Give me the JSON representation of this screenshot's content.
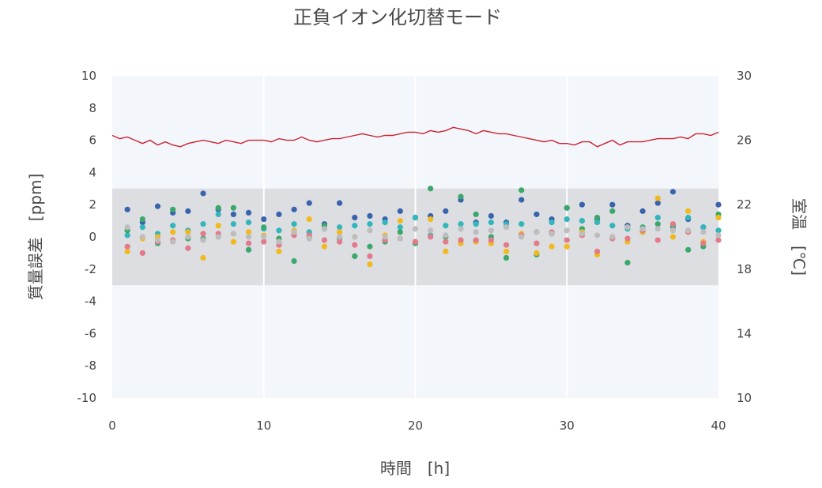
{
  "chart_data": {
    "type": "scatter",
    "title": "正負イオン化切替モード",
    "xlabel": "時間　[h]",
    "ylabel": "質量誤差　[ppm]",
    "y2label": "室温　[℃]",
    "xlim": [
      0,
      40
    ],
    "ylim": [
      -10,
      10
    ],
    "y2lim": [
      10,
      30
    ],
    "x_ticks": [
      "0",
      "10",
      "20",
      "30",
      "40"
    ],
    "y_ticks": [
      "10",
      "8",
      "6",
      "4",
      "2",
      "0",
      "-2",
      "-4",
      "-6",
      "-8",
      "-10"
    ],
    "y2_ticks": [
      "30",
      "26",
      "22",
      "18",
      "14",
      "10"
    ],
    "tolerance_band": [
      -3,
      3
    ],
    "colors": {
      "blue": "#3a63ad",
      "teal": "#33b5bc",
      "green": "#3aa86b",
      "yellow": "#f2b91e",
      "pink": "#e27a8a",
      "gray": "#bdbdbd",
      "temperature": "#cc2233"
    },
    "series": [
      {
        "color_key": "blue",
        "x": [
          1,
          2,
          3,
          4,
          5,
          6,
          7,
          8,
          9,
          10,
          11,
          12,
          13,
          14,
          15,
          16,
          17,
          18,
          19,
          20,
          21,
          22,
          23,
          24,
          25,
          26,
          27,
          28,
          29,
          30,
          31,
          32,
          33,
          34,
          35,
          36,
          37,
          38,
          39,
          40
        ],
        "y": [
          1.7,
          0.9,
          1.9,
          1.5,
          1.6,
          2.7,
          1.7,
          1.4,
          1.5,
          1.1,
          1.4,
          1.7,
          2.1,
          0.8,
          2.1,
          1.2,
          1.3,
          1.1,
          1.6,
          1.2,
          1.3,
          1.6,
          2.3,
          0.9,
          1.3,
          0.9,
          2.3,
          1.4,
          1.1,
          1.8,
          2.0,
          1.1,
          2.0,
          0.7,
          1.6,
          2.1,
          2.8,
          1.1,
          0.6,
          2.0
        ]
      },
      {
        "color_key": "teal",
        "x": [
          1,
          2,
          3,
          4,
          5,
          6,
          7,
          8,
          9,
          10,
          11,
          12,
          13,
          14,
          15,
          16,
          17,
          18,
          19,
          20,
          21,
          22,
          23,
          24,
          25,
          26,
          27,
          28,
          29,
          30,
          31,
          32,
          33,
          34,
          35,
          36,
          37,
          38,
          39,
          40
        ],
        "y": [
          0.1,
          0.6,
          0.2,
          0.7,
          0.4,
          0.8,
          1.4,
          0.8,
          0.9,
          0.5,
          0.4,
          0.8,
          0.3,
          0.5,
          0.6,
          0.7,
          0.8,
          0.9,
          0.6,
          1.2,
          0.1,
          0.7,
          0.8,
          0.8,
          0.9,
          0.8,
          0.8,
          0.3,
          0.9,
          1.1,
          1.0,
          0.9,
          0.7,
          0.5,
          0.3,
          1.2,
          0.6,
          1.2,
          0.6,
          0.4
        ]
      },
      {
        "color_key": "green",
        "x": [
          1,
          2,
          3,
          4,
          5,
          6,
          7,
          8,
          9,
          10,
          11,
          12,
          13,
          14,
          15,
          16,
          17,
          18,
          19,
          20,
          21,
          22,
          23,
          24,
          25,
          26,
          27,
          28,
          29,
          30,
          31,
          32,
          33,
          34,
          35,
          36,
          37,
          38,
          39,
          40
        ],
        "y": [
          0.4,
          1.1,
          -0.4,
          1.7,
          -0.1,
          -0.1,
          1.8,
          1.8,
          -0.8,
          0.6,
          -0.1,
          -1.5,
          0.0,
          0.7,
          -0.1,
          -1.2,
          -0.6,
          -0.3,
          0.3,
          -0.4,
          3.0,
          0.0,
          2.5,
          1.4,
          0.0,
          -1.3,
          2.9,
          -1.1,
          0.2,
          1.8,
          0.5,
          1.2,
          1.6,
          -1.6,
          0.6,
          0.8,
          0.7,
          -0.8,
          -0.6,
          1.4
        ]
      },
      {
        "color_key": "yellow",
        "x": [
          1,
          2,
          3,
          4,
          5,
          6,
          7,
          8,
          9,
          10,
          11,
          12,
          13,
          14,
          15,
          16,
          17,
          18,
          19,
          20,
          21,
          22,
          23,
          24,
          25,
          26,
          27,
          28,
          29,
          30,
          31,
          32,
          33,
          34,
          35,
          36,
          37,
          38,
          39,
          40
        ],
        "y": [
          -0.9,
          -0.1,
          0.0,
          0.3,
          0.3,
          -1.3,
          0.7,
          -0.3,
          0.3,
          0.1,
          -0.9,
          0.4,
          1.1,
          -0.6,
          0.3,
          0.0,
          -1.7,
          0.1,
          1.0,
          -0.3,
          1.1,
          -0.9,
          -0.4,
          -0.3,
          -0.4,
          -0.9,
          0.2,
          -1.0,
          -0.6,
          -0.6,
          0.3,
          -1.1,
          0.0,
          -0.3,
          0.3,
          2.4,
          0.0,
          1.6,
          -0.3,
          1.2
        ]
      },
      {
        "color_key": "pink",
        "x": [
          1,
          2,
          3,
          4,
          5,
          6,
          7,
          8,
          9,
          10,
          11,
          12,
          13,
          14,
          15,
          16,
          17,
          18,
          19,
          20,
          21,
          22,
          23,
          24,
          25,
          26,
          27,
          28,
          29,
          30,
          31,
          32,
          33,
          34,
          35,
          36,
          37,
          38,
          39,
          40
        ],
        "y": [
          -0.6,
          -1.0,
          -0.3,
          -0.2,
          -0.7,
          0.2,
          0.2,
          0.2,
          -0.4,
          -0.3,
          -0.5,
          0.1,
          0.1,
          -0.2,
          -0.3,
          -0.5,
          -1.2,
          -0.2,
          -0.1,
          -0.3,
          0.0,
          -0.3,
          -0.2,
          -0.2,
          -0.2,
          -0.5,
          0.1,
          -0.4,
          0.3,
          -0.2,
          0.1,
          -0.9,
          -0.1,
          -0.1,
          0.4,
          -0.2,
          0.8,
          0.3,
          -0.4,
          -0.2
        ]
      },
      {
        "color_key": "gray",
        "x": [
          1,
          2,
          3,
          4,
          5,
          6,
          7,
          8,
          9,
          10,
          11,
          12,
          13,
          14,
          15,
          16,
          17,
          18,
          19,
          20,
          21,
          22,
          23,
          24,
          25,
          26,
          27,
          28,
          29,
          30,
          31,
          32,
          33,
          34,
          35,
          36,
          37,
          38,
          39,
          40
        ],
        "y": [
          0.6,
          0.0,
          -0.2,
          -0.3,
          0.0,
          -0.2,
          0.0,
          0.2,
          0.0,
          0.0,
          -0.3,
          0.3,
          -0.1,
          0.5,
          0.0,
          0.0,
          0.4,
          0.0,
          -0.1,
          0.5,
          0.4,
          0.1,
          0.5,
          0.3,
          0.4,
          0.6,
          0.0,
          0.3,
          0.2,
          0.4,
          0.2,
          0.1,
          0.0,
          0.6,
          0.5,
          0.5,
          0.4,
          0.4,
          0.3,
          0.1
        ]
      }
    ],
    "temperature_series": {
      "color_key": "temperature",
      "x": [
        0,
        0.5,
        1,
        1.5,
        2,
        2.5,
        3,
        3.5,
        4,
        4.5,
        5,
        5.5,
        6,
        6.5,
        7,
        7.5,
        8,
        8.5,
        9,
        9.5,
        10,
        10.5,
        11,
        11.5,
        12,
        12.5,
        13,
        13.5,
        14,
        14.5,
        15,
        15.5,
        16,
        16.5,
        17,
        17.5,
        18,
        18.5,
        19,
        19.5,
        20,
        20.5,
        21,
        21.5,
        22,
        22.5,
        23,
        23.5,
        24,
        24.5,
        25,
        25.5,
        26,
        26.5,
        27,
        27.5,
        28,
        28.5,
        29,
        29.5,
        30,
        30.5,
        31,
        31.5,
        32,
        32.5,
        33,
        33.5,
        34,
        34.5,
        35,
        35.5,
        36,
        36.5,
        37,
        37.5,
        38,
        38.5,
        39,
        39.5,
        40
      ],
      "y": [
        26.3,
        26.1,
        26.2,
        26.0,
        25.8,
        26.0,
        25.7,
        25.9,
        25.7,
        25.6,
        25.8,
        25.9,
        26.0,
        25.9,
        25.8,
        26.0,
        25.9,
        25.8,
        26.0,
        26.0,
        26.0,
        25.9,
        26.1,
        26.0,
        26.0,
        26.2,
        26.0,
        25.9,
        26.0,
        26.1,
        26.1,
        26.2,
        26.3,
        26.4,
        26.3,
        26.2,
        26.3,
        26.3,
        26.4,
        26.5,
        26.5,
        26.4,
        26.6,
        26.5,
        26.6,
        26.8,
        26.7,
        26.6,
        26.4,
        26.6,
        26.5,
        26.4,
        26.4,
        26.3,
        26.2,
        26.1,
        26.0,
        25.9,
        26.0,
        25.8,
        25.8,
        25.7,
        25.9,
        25.9,
        25.6,
        25.8,
        26.0,
        25.7,
        25.9,
        25.9,
        25.9,
        26.0,
        26.1,
        26.1,
        26.1,
        26.2,
        26.1,
        26.4,
        26.4,
        26.3,
        26.5
      ]
    }
  }
}
